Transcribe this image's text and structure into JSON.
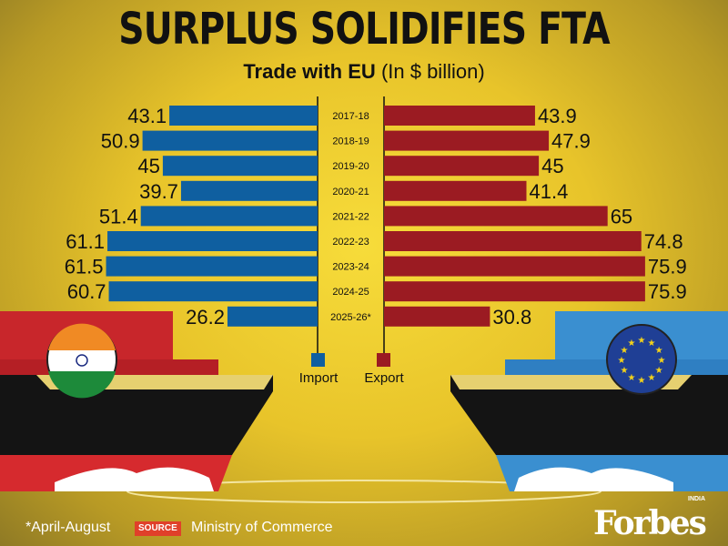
{
  "title": "SURPLUS SOLIDIFIES FTA",
  "subtitle_bold": "Trade with EU",
  "subtitle_rest": "(In $ billion)",
  "chart_data": {
    "type": "bar",
    "orientation": "horizontal-butterfly",
    "categories": [
      "2017-18",
      "2018-19",
      "2019-20",
      "2020-21",
      "2021-22",
      "2022-23",
      "2023-24",
      "2024-25",
      "2025-26*"
    ],
    "series": [
      {
        "name": "Import",
        "color": "#0f5fa0",
        "values": [
          43.1,
          50.9,
          45,
          39.7,
          51.4,
          61.1,
          61.5,
          60.7,
          26.2
        ]
      },
      {
        "name": "Export",
        "color": "#9b1b22",
        "values": [
          43.9,
          47.9,
          45,
          41.4,
          65,
          74.8,
          75.9,
          75.9,
          30.8
        ]
      }
    ]
  },
  "footnote": "*April-August",
  "source_label": "SOURCE",
  "source": "Ministry of Commerce",
  "logo": "Forbes",
  "logo_sub": "INDIA",
  "colors": {
    "india_container": "#c8262b",
    "eu_container": "#3a8fd0",
    "hull": "#111111"
  }
}
